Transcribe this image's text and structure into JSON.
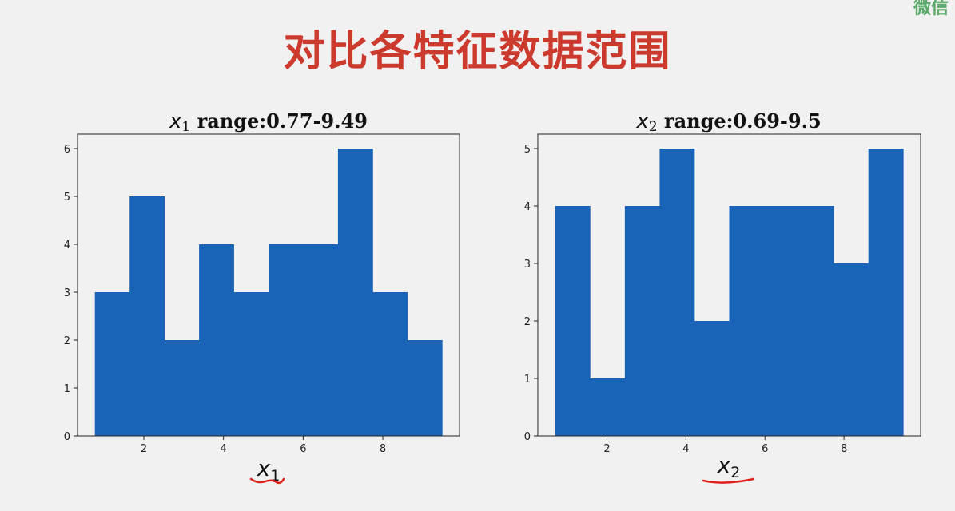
{
  "slide": {
    "title": "对比各特征数据范围",
    "watermark": "微信"
  },
  "colors": {
    "bar": "#1a64b7",
    "title": "#cc3a2e",
    "underline": "#e0201b"
  },
  "chart_data": [
    {
      "type": "bar",
      "title_var": "x",
      "title_sub": "1",
      "title_rest": " range:0.77-9.49",
      "xlabel_var": "x",
      "xlabel_sub": "1",
      "x_bin_edges": [
        0.77,
        1.642,
        2.514,
        3.386,
        4.258,
        5.13,
        6.002,
        6.874,
        7.746,
        8.618,
        9.49
      ],
      "values": [
        3,
        5,
        2,
        4,
        3,
        4,
        4,
        6,
        3,
        2
      ],
      "xlim": [
        0.334,
        9.926
      ],
      "ylim": [
        0,
        6.3
      ],
      "xticks": [
        2,
        4,
        6,
        8
      ],
      "yticks": [
        0,
        1,
        2,
        3,
        4,
        5,
        6
      ],
      "grid": false
    },
    {
      "type": "bar",
      "title_var": "x",
      "title_sub": "2",
      "title_rest": " range:0.69-9.5",
      "xlabel_var": "x",
      "xlabel_sub": "2",
      "x_bin_edges": [
        0.69,
        1.571,
        2.452,
        3.333,
        4.214,
        5.095,
        5.976,
        6.857,
        7.738,
        8.619,
        9.5
      ],
      "values": [
        4,
        1,
        4,
        5,
        2,
        4,
        4,
        4,
        3,
        5
      ],
      "xlim": [
        0.2495,
        9.9405
      ],
      "ylim": [
        0,
        5.25
      ],
      "xticks": [
        2,
        4,
        6,
        8
      ],
      "yticks": [
        0,
        1,
        2,
        3,
        4,
        5
      ],
      "grid": false
    }
  ]
}
